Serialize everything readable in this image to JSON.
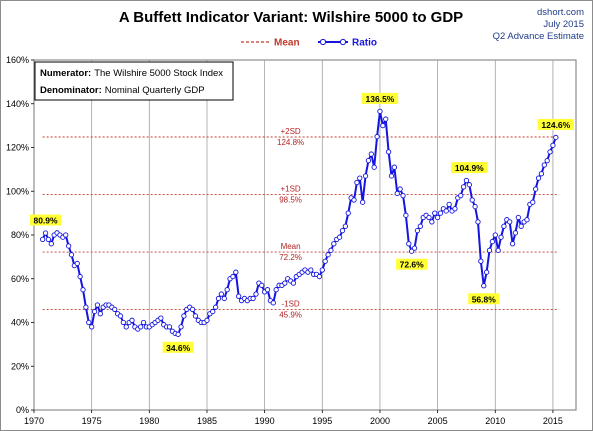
{
  "chart_data": {
    "type": "line",
    "title": "A Buffett Indicator Variant: Wilshire 5000 to GDP",
    "source": {
      "site": "dshort.com",
      "date": "July 2015",
      "note": "Q2 Advance Estimate"
    },
    "legend": {
      "position": "top-center",
      "entries": [
        "Mean",
        "Ratio"
      ]
    },
    "info_box": {
      "numerator_label": "Numerator:",
      "numerator_value": "The Wilshire 5000 Stock Index",
      "denominator_label": "Denominator:",
      "denominator_value": "Nominal Quarterly GDP"
    },
    "x_axis": {
      "min": 1970,
      "max": 2017,
      "ticks": [
        1970,
        1975,
        1980,
        1985,
        1990,
        1995,
        2000,
        2005,
        2010,
        2015
      ],
      "tick_labels": [
        "1970",
        "1975",
        "1980",
        "1985",
        "1990",
        "1995",
        "2000",
        "2005",
        "2010",
        "2015"
      ],
      "grid": true
    },
    "y_axis": {
      "min": 0,
      "max": 160,
      "ticks": [
        0,
        20,
        40,
        60,
        80,
        100,
        120,
        140,
        160
      ],
      "tick_labels": [
        "0%",
        "20%",
        "40%",
        "60%",
        "80%",
        "100%",
        "120%",
        "140%",
        "160%"
      ],
      "grid": false
    },
    "reference_lines": [
      {
        "key": "plus2sd",
        "value": 124.8,
        "label_top": "+2SD",
        "label_bottom": "124.8%"
      },
      {
        "key": "plus1sd",
        "value": 98.5,
        "label_top": "+1SD",
        "label_bottom": "98.5%"
      },
      {
        "key": "mean",
        "value": 72.2,
        "label_top": "Mean",
        "label_bottom": "72.2%"
      },
      {
        "key": "minus1sd",
        "value": 45.9,
        "label_top": "-1SD",
        "label_bottom": "45.9%"
      }
    ],
    "colors": {
      "ratio_line": "#1515e0",
      "marker_fill": "#ffffff",
      "mean_line": "#c0392b",
      "annotation_bg": "#ffff33",
      "grid": "#a0a0a0",
      "source_text": "#1f3c88"
    },
    "annotations": [
      {
        "key": "a1",
        "x": 1971.0,
        "y": 80.9,
        "label": "80.9%",
        "placement": "above"
      },
      {
        "key": "a2",
        "x": 1982.5,
        "y": 34.6,
        "label": "34.6%",
        "placement": "below"
      },
      {
        "key": "a3",
        "x": 2000.0,
        "y": 136.5,
        "label": "136.5%",
        "placement": "above"
      },
      {
        "key": "a4",
        "x": 2002.75,
        "y": 72.6,
        "label": "72.6%",
        "placement": "below"
      },
      {
        "key": "a5",
        "x": 2007.75,
        "y": 104.9,
        "label": "104.9%",
        "placement": "above"
      },
      {
        "key": "a6",
        "x": 2009.0,
        "y": 56.8,
        "label": "56.8%",
        "placement": "below"
      },
      {
        "key": "a7",
        "x": 2015.25,
        "y": 124.6,
        "label": "124.6%",
        "placement": "above"
      }
    ],
    "series": [
      {
        "name": "Ratio",
        "points": [
          [
            1970.75,
            78
          ],
          [
            1971.0,
            80.9
          ],
          [
            1971.25,
            78
          ],
          [
            1971.5,
            76
          ],
          [
            1971.75,
            80
          ],
          [
            1972.0,
            81
          ],
          [
            1972.25,
            80
          ],
          [
            1972.5,
            79
          ],
          [
            1972.75,
            80
          ],
          [
            1973.0,
            75
          ],
          [
            1973.25,
            71
          ],
          [
            1973.5,
            66
          ],
          [
            1973.75,
            67
          ],
          [
            1974.0,
            61
          ],
          [
            1974.25,
            55
          ],
          [
            1974.5,
            47
          ],
          [
            1974.75,
            40
          ],
          [
            1975.0,
            38
          ],
          [
            1975.25,
            45
          ],
          [
            1975.5,
            48
          ],
          [
            1975.75,
            44
          ],
          [
            1976.0,
            47
          ],
          [
            1976.25,
            48
          ],
          [
            1976.5,
            48
          ],
          [
            1976.75,
            47
          ],
          [
            1977.0,
            46
          ],
          [
            1977.25,
            44
          ],
          [
            1977.5,
            43
          ],
          [
            1977.75,
            40
          ],
          [
            1978.0,
            38
          ],
          [
            1978.25,
            40
          ],
          [
            1978.5,
            41
          ],
          [
            1978.75,
            38
          ],
          [
            1979.0,
            37
          ],
          [
            1979.25,
            38
          ],
          [
            1979.5,
            40
          ],
          [
            1979.75,
            38
          ],
          [
            1980.0,
            38
          ],
          [
            1980.25,
            39
          ],
          [
            1980.5,
            40
          ],
          [
            1980.75,
            41
          ],
          [
            1981.0,
            42
          ],
          [
            1981.25,
            39
          ],
          [
            1981.5,
            38
          ],
          [
            1981.75,
            38
          ],
          [
            1982.0,
            36
          ],
          [
            1982.25,
            35
          ],
          [
            1982.5,
            34.6
          ],
          [
            1982.75,
            38
          ],
          [
            1983.0,
            43
          ],
          [
            1983.25,
            46
          ],
          [
            1983.5,
            47
          ],
          [
            1983.75,
            46
          ],
          [
            1984.0,
            43
          ],
          [
            1984.25,
            41
          ],
          [
            1984.5,
            40
          ],
          [
            1984.75,
            40
          ],
          [
            1985.0,
            41
          ],
          [
            1985.25,
            44
          ],
          [
            1985.5,
            45
          ],
          [
            1985.75,
            47
          ],
          [
            1986.0,
            51
          ],
          [
            1986.25,
            53
          ],
          [
            1986.5,
            51
          ],
          [
            1986.75,
            55
          ],
          [
            1987.0,
            60
          ],
          [
            1987.25,
            61
          ],
          [
            1987.5,
            63
          ],
          [
            1987.75,
            52
          ],
          [
            1988.0,
            50
          ],
          [
            1988.25,
            51
          ],
          [
            1988.5,
            50
          ],
          [
            1988.75,
            51
          ],
          [
            1989.0,
            51
          ],
          [
            1989.25,
            53
          ],
          [
            1989.5,
            58
          ],
          [
            1989.75,
            57
          ],
          [
            1990.0,
            54
          ],
          [
            1990.25,
            55
          ],
          [
            1990.5,
            50
          ],
          [
            1990.75,
            49
          ],
          [
            1991.0,
            55
          ],
          [
            1991.25,
            57
          ],
          [
            1991.5,
            57
          ],
          [
            1991.75,
            58
          ],
          [
            1992.0,
            60
          ],
          [
            1992.25,
            59
          ],
          [
            1992.5,
            58
          ],
          [
            1992.75,
            61
          ],
          [
            1993.0,
            62
          ],
          [
            1993.25,
            63
          ],
          [
            1993.5,
            64
          ],
          [
            1993.75,
            63
          ],
          [
            1994.0,
            64
          ],
          [
            1994.25,
            62
          ],
          [
            1994.5,
            62
          ],
          [
            1994.75,
            61
          ],
          [
            1995.0,
            64
          ],
          [
            1995.25,
            68
          ],
          [
            1995.5,
            71
          ],
          [
            1995.75,
            73
          ],
          [
            1996.0,
            76
          ],
          [
            1996.25,
            78
          ],
          [
            1996.5,
            79
          ],
          [
            1996.75,
            82
          ],
          [
            1997.0,
            84
          ],
          [
            1997.25,
            90
          ],
          [
            1997.5,
            97
          ],
          [
            1997.75,
            96
          ],
          [
            1998.0,
            104
          ],
          [
            1998.25,
            106
          ],
          [
            1998.5,
            95
          ],
          [
            1998.75,
            107
          ],
          [
            1999.0,
            114
          ],
          [
            1999.25,
            117
          ],
          [
            1999.5,
            111
          ],
          [
            1999.75,
            125
          ],
          [
            2000.0,
            136.5
          ],
          [
            2000.25,
            130
          ],
          [
            2000.5,
            133
          ],
          [
            2000.75,
            118
          ],
          [
            2001.0,
            107
          ],
          [
            2001.25,
            111
          ],
          [
            2001.5,
            99
          ],
          [
            2001.75,
            101
          ],
          [
            2002.0,
            98
          ],
          [
            2002.25,
            89
          ],
          [
            2002.5,
            76
          ],
          [
            2002.75,
            72.6
          ],
          [
            2003.0,
            74
          ],
          [
            2003.25,
            82
          ],
          [
            2003.5,
            84
          ],
          [
            2003.75,
            88
          ],
          [
            2004.0,
            89
          ],
          [
            2004.25,
            88
          ],
          [
            2004.5,
            86
          ],
          [
            2004.75,
            90
          ],
          [
            2005.0,
            88
          ],
          [
            2005.25,
            90
          ],
          [
            2005.5,
            92
          ],
          [
            2005.75,
            91
          ],
          [
            2006.0,
            94
          ],
          [
            2006.25,
            91
          ],
          [
            2006.5,
            92
          ],
          [
            2006.75,
            97
          ],
          [
            2007.0,
            98
          ],
          [
            2007.25,
            102
          ],
          [
            2007.5,
            104.9
          ],
          [
            2007.75,
            103
          ],
          [
            2008.0,
            96
          ],
          [
            2008.25,
            93
          ],
          [
            2008.5,
            86
          ],
          [
            2008.75,
            68
          ],
          [
            2009.0,
            56.8
          ],
          [
            2009.25,
            63
          ],
          [
            2009.5,
            73
          ],
          [
            2009.75,
            77
          ],
          [
            2010.0,
            80
          ],
          [
            2010.25,
            73
          ],
          [
            2010.5,
            79
          ],
          [
            2010.75,
            84
          ],
          [
            2011.0,
            87
          ],
          [
            2011.25,
            86
          ],
          [
            2011.5,
            76
          ],
          [
            2011.75,
            81
          ],
          [
            2012.0,
            88
          ],
          [
            2012.25,
            84
          ],
          [
            2012.5,
            86
          ],
          [
            2012.75,
            87
          ],
          [
            2013.0,
            94
          ],
          [
            2013.25,
            95
          ],
          [
            2013.5,
            101
          ],
          [
            2013.75,
            106
          ],
          [
            2014.0,
            108
          ],
          [
            2014.25,
            112
          ],
          [
            2014.5,
            114
          ],
          [
            2014.75,
            118
          ],
          [
            2015.0,
            121
          ],
          [
            2015.25,
            124.6
          ]
        ]
      }
    ]
  }
}
